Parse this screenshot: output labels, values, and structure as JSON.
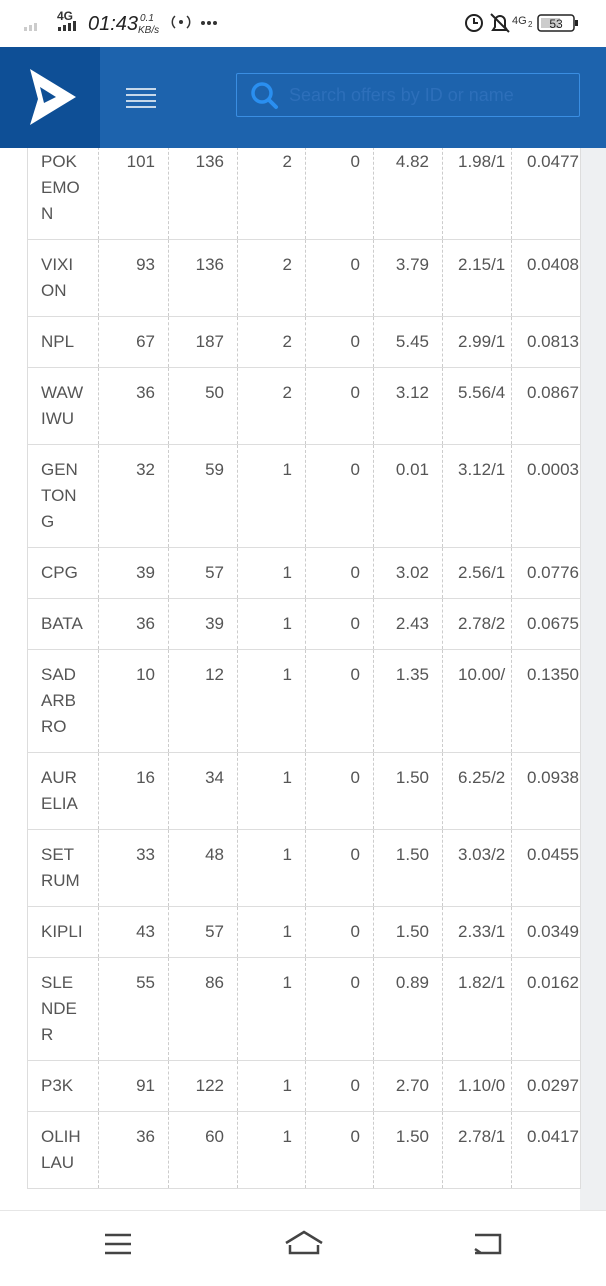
{
  "status_bar": {
    "network": "4G",
    "time": "01:43",
    "speed": "0.1",
    "speed_unit": "KB/s",
    "network_2": "4G",
    "sim": "2",
    "battery": "53"
  },
  "header": {
    "search_placeholder": "Search offers by ID or name"
  },
  "table": {
    "rows": [
      [
        "POKEMON",
        "101",
        "136",
        "2",
        "0",
        "4.82",
        "1.98/1",
        "0.0477"
      ],
      [
        "VIXION",
        "93",
        "136",
        "2",
        "0",
        "3.79",
        "2.15/1",
        "0.0408"
      ],
      [
        "NPL",
        "67",
        "187",
        "2",
        "0",
        "5.45",
        "2.99/1",
        "0.0813"
      ],
      [
        "WAWIWU",
        "36",
        "50",
        "2",
        "0",
        "3.12",
        "5.56/4",
        "0.0867"
      ],
      [
        "GENTONG",
        "32",
        "59",
        "1",
        "0",
        "0.01",
        "3.12/1",
        "0.0003"
      ],
      [
        "CPG",
        "39",
        "57",
        "1",
        "0",
        "3.02",
        "2.56/1",
        "0.0776"
      ],
      [
        "BATA",
        "36",
        "39",
        "1",
        "0",
        "2.43",
        "2.78/2",
        "0.0675"
      ],
      [
        "SADARBRO",
        "10",
        "12",
        "1",
        "0",
        "1.35",
        "10.00/",
        "0.1350"
      ],
      [
        "AURELIA",
        "16",
        "34",
        "1",
        "0",
        "1.50",
        "6.25/2",
        "0.0938"
      ],
      [
        "SETRUM",
        "33",
        "48",
        "1",
        "0",
        "1.50",
        "3.03/2",
        "0.0455"
      ],
      [
        "KIPLI",
        "43",
        "57",
        "1",
        "0",
        "1.50",
        "2.33/1",
        "0.0349"
      ],
      [
        "SLENDER",
        "55",
        "86",
        "1",
        "0",
        "0.89",
        "1.82/1",
        "0.0162"
      ],
      [
        "P3K",
        "91",
        "122",
        "1",
        "0",
        "2.70",
        "1.10/0",
        "0.0297"
      ],
      [
        "OLIHLAU",
        "36",
        "60",
        "1",
        "0",
        "1.50",
        "2.78/1",
        "0.0417"
      ]
    ]
  }
}
